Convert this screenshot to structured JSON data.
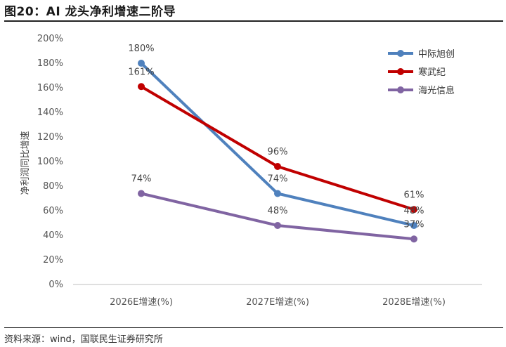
{
  "figure": {
    "title": "图20：AI 龙头净利增速二阶导",
    "source": "资料来源：wind，国联民生证券研究所"
  },
  "chart_data": {
    "type": "line",
    "title": "",
    "xlabel": "",
    "ylabel": "净利润同比增速",
    "categories": [
      "2026E增速(%)",
      "2027E增速(%)",
      "2028E增速(%)"
    ],
    "ylim": [
      0,
      200
    ],
    "yticks": [
      "0%",
      "20%",
      "40%",
      "60%",
      "80%",
      "100%",
      "120%",
      "140%",
      "160%",
      "180%",
      "200%"
    ],
    "grid": false,
    "legend_position": "top-right",
    "series": [
      {
        "name": "中际旭创",
        "values": [
          180,
          74,
          48
        ],
        "labels": [
          "180%",
          "74%",
          "48%"
        ],
        "color": "#4f81bd"
      },
      {
        "name": "寒武纪",
        "values": [
          161,
          96,
          61
        ],
        "labels": [
          "161%",
          "96%",
          "61%"
        ],
        "color": "#c00000"
      },
      {
        "name": "海光信息",
        "values": [
          74,
          48,
          37
        ],
        "labels": [
          "74%",
          "48%",
          "37%"
        ],
        "color": "#8064a2"
      }
    ]
  }
}
